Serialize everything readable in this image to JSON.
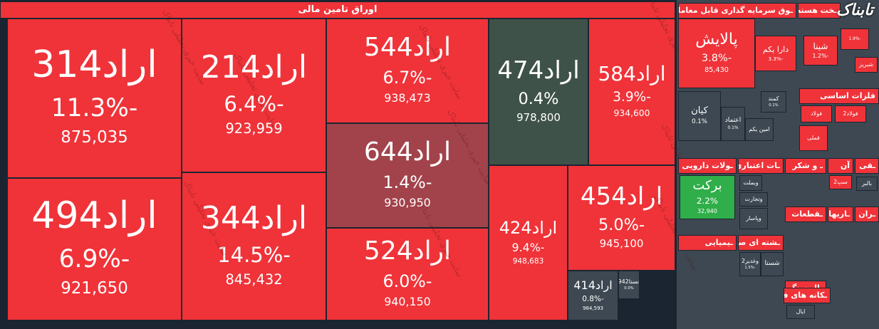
{
  "header": {
    "title": "اوراق تامین مالی",
    "logo": "تابناک",
    "watermark": "سایت خبری تحلیلی تابناک"
  },
  "tiles": [
    {
      "name": "اراد314",
      "change": "-11.3%",
      "price": "875,035"
    },
    {
      "name": "اراد494",
      "change": "-6.9%",
      "price": "921,650"
    },
    {
      "name": "اراد214",
      "change": "-6.4%",
      "price": "923,959"
    },
    {
      "name": "اراد344",
      "change": "-14.5%",
      "price": "845,432"
    },
    {
      "name": "اراد544",
      "change": "-6.7%",
      "price": "938,473"
    },
    {
      "name": "اراد644",
      "change": "-1.4%",
      "price": "930,950"
    },
    {
      "name": "اراد524",
      "change": "-6.0%",
      "price": "940,150"
    },
    {
      "name": "اراد474",
      "change": "0.4%",
      "price": "978,800"
    },
    {
      "name": "اراد584",
      "change": "-3.9%",
      "price": "934,600"
    },
    {
      "name": "اراد424",
      "change": "-9.4%",
      "price": "948,683"
    },
    {
      "name": "اراد454",
      "change": "-5.0%",
      "price": "945,100"
    },
    {
      "name": "اراد414",
      "change": "-0.8%",
      "price": "984,593"
    },
    {
      "name": "نستا942",
      "change": "0.0%"
    }
  ],
  "sectors": [
    {
      "title": "ـوق سرمایه گذاری قابل معامله",
      "tiles": [
        {
          "name": "پالایش",
          "change": "-3.8%",
          "price": "85,430"
        },
        {
          "name": "دارا یکم",
          "change": "-3.3%"
        },
        {
          "name": "کیان",
          "change": "0.1%"
        },
        {
          "name": "اعتماد",
          "change": "0.1%"
        },
        {
          "name": "کمند",
          "change": "0.1%"
        },
        {
          "name": "امین یکم"
        }
      ]
    },
    {
      "title": "ـخت هسته ای",
      "tiles": [
        {
          "name": "شینا",
          "change": "-1.2%"
        },
        {
          "change": "-1.9%"
        },
        {
          "name": "شبریز"
        }
      ]
    },
    {
      "title": "فلزات اساسی",
      "tiles": [
        {
          "name": "فولاد"
        },
        {
          "name": "فولاد2"
        },
        {
          "name": "فملی"
        }
      ]
    },
    {
      "title": "ـولات دارویی",
      "tiles": [
        {
          "name": "برکت",
          "change": "2.2%",
          "price": "32,940"
        }
      ]
    },
    {
      "title": "ـات اعتباری",
      "tiles": [
        {
          "name": "وبملت"
        },
        {
          "name": "وتجارت"
        },
        {
          "name": "وپاسار"
        }
      ]
    },
    {
      "title": "ـ و شکر",
      "tiles": []
    },
    {
      "title": "آن",
      "tiles": [
        {
          "name": "سپ2"
        }
      ]
    },
    {
      "title": "ـقی",
      "tiles": [
        {
          "name": "بالبر"
        }
      ]
    },
    {
      "title": "ـقطعات",
      "tiles": []
    },
    {
      "title": "ـاریها",
      "tiles": []
    },
    {
      "title": "ـران",
      "tiles": []
    },
    {
      "title": "ـیمیایی",
      "tiles": []
    },
    {
      "title": "ـشته ای صنعتی",
      "tiles": [
        {
          "name": "وغدیر2",
          "change": "-1.5%"
        },
        {
          "name": "شستا"
        }
      ]
    },
    {
      "title": "ـال سنگ",
      "tiles": []
    },
    {
      "title": "ـکانه های فلزی",
      "tiles": [
        {
          "name": "ایال"
        }
      ]
    }
  ]
}
